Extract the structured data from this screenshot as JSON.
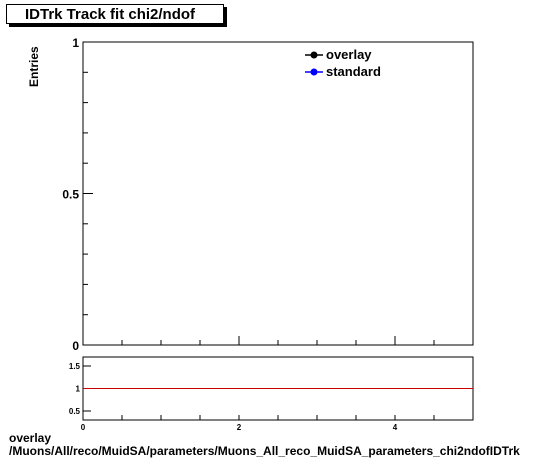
{
  "title": "IDTrk Track fit chi2/ndof",
  "legend": {
    "position": "top-right",
    "entries": [
      {
        "label": "overlay",
        "color": "#000000"
      },
      {
        "label": "standard",
        "color": "#0000ff"
      }
    ]
  },
  "footer": {
    "line1": "overlay",
    "line2": "/Muons/All/reco/MuidSA/parameters/Muons_All_reco_MuidSA_parameters_chi2ndofIDTrk"
  },
  "chart_data": [
    {
      "type": "line",
      "title": "IDTrk Track fit chi2/ndof",
      "ylabel": "Entries",
      "xlabel": "",
      "xlim": [
        0,
        5
      ],
      "ylim": [
        0,
        1
      ],
      "yticks": [
        "0",
        "0.5",
        "1"
      ],
      "series": [
        {
          "name": "overlay",
          "x": [],
          "y": []
        },
        {
          "name": "standard",
          "x": [],
          "y": []
        }
      ],
      "grid": false,
      "legend": "top-right"
    },
    {
      "type": "line",
      "title": "",
      "xlim": [
        0,
        5
      ],
      "ylim": [
        0.3,
        1.7
      ],
      "xticks": [
        "0",
        "2",
        "4"
      ],
      "yticks": [
        "0.5",
        "1",
        "1.5"
      ],
      "reference_line": {
        "y": 1,
        "color": "#cc0000"
      },
      "series": []
    }
  ]
}
